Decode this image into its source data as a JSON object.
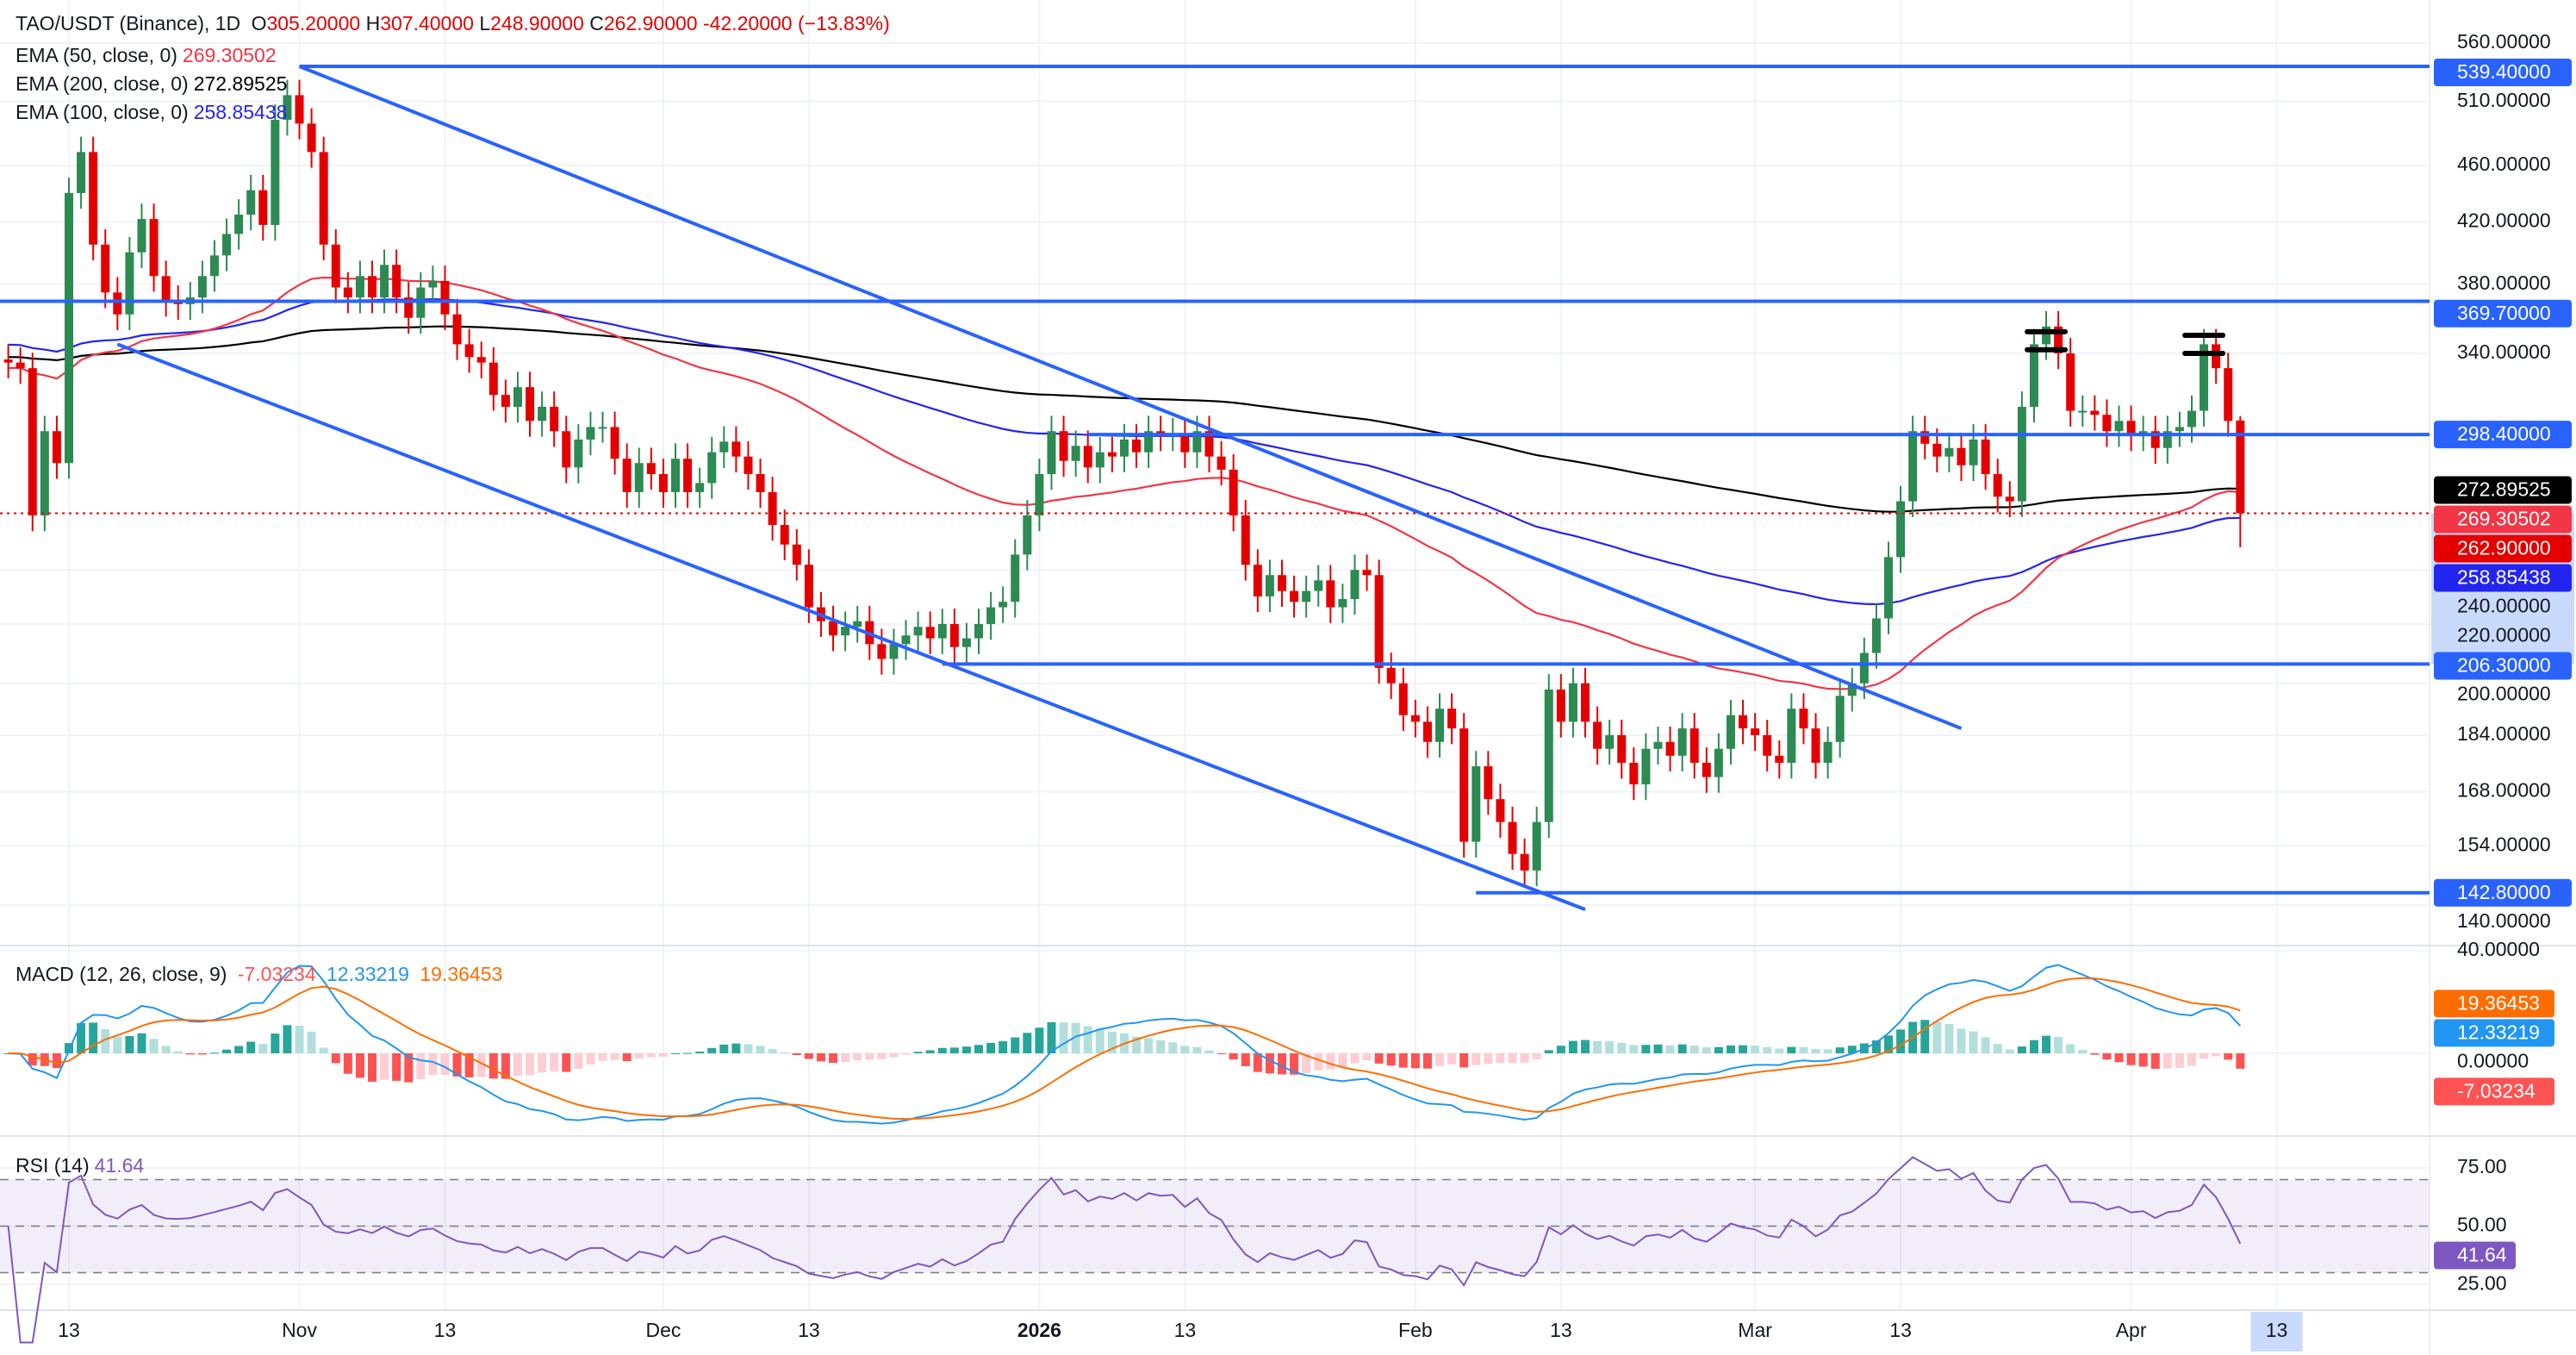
{
  "header": {
    "symbol": "TAO/USDT (Binance), 1D",
    "o_label": "O",
    "o": "305.20000",
    "h_label": "H",
    "h": "307.40000",
    "l_label": "L",
    "l": "248.90000",
    "c_label": "C",
    "c": "262.90000",
    "change": "-42.20000 (−13.83%)"
  },
  "indicators": {
    "ema50": {
      "label": "EMA (50, close, 0)",
      "value": "269.30502",
      "color": "#f23645"
    },
    "ema200": {
      "label": "EMA (200, close, 0)",
      "value": "272.89525",
      "color": "#000000"
    },
    "ema100": {
      "label": "EMA (100, close, 0)",
      "value": "258.85438",
      "color": "#2424f0"
    },
    "macd": {
      "label": "MACD (12, 26, close, 9)",
      "hist": "-7.03234",
      "macd": "12.33219",
      "signal": "19.36453"
    },
    "rsi": {
      "label": "RSI (14)",
      "value": "41.64"
    }
  },
  "chart_data": {
    "type": "candlestick",
    "scale": "log",
    "ylim": [
      140,
      560
    ],
    "grid": true,
    "colors": {
      "up": "#2c8a53",
      "down": "#e50000",
      "trendline": "#2962ff",
      "macd": "#2196f3",
      "signal": "#ff6d00",
      "rsi": "#7e57c2"
    },
    "last_candle": {
      "date": "2026-04-10",
      "open": 305.2,
      "high": 307.4,
      "low": 248.9,
      "close": 262.9
    },
    "candles": [
      {
        "month": "2025-10",
        "days_from": 8,
        "close": [
          335,
          332,
          262,
          300,
          285,
          440,
          470,
          405,
          375,
          362,
          400,
          422,
          385,
          370,
          368,
          372,
          385,
          398,
          412,
          425,
          442,
          418,
          495,
          515
        ]
      },
      {
        "month": "2025-11",
        "days_from": 1,
        "close": [
          492,
          470,
          405,
          378,
          372,
          385,
          372,
          392,
          372,
          360,
          378,
          382,
          362,
          345,
          338,
          335,
          318,
          312,
          322,
          305,
          312,
          300,
          283,
          296,
          302,
          302,
          287,
          272,
          285,
          280
        ]
      },
      {
        "month": "2025-12",
        "days_from": 1,
        "close": [
          272,
          287,
          272,
          276,
          290,
          295,
          288,
          280,
          272,
          258,
          250,
          242,
          226,
          221,
          216,
          219,
          221,
          213,
          208,
          213,
          216,
          219,
          215,
          220,
          212,
          215,
          220,
          226,
          228,
          246,
          262
        ]
      },
      {
        "month": "2026-01",
        "days_from": 1,
        "close": [
          280,
          300,
          286,
          293,
          283,
          290,
          288,
          296,
          290,
          300,
          298,
          299,
          290,
          300,
          288,
          282,
          262,
          242,
          230,
          238,
          232,
          228,
          232,
          236,
          226,
          229,
          240,
          238,
          205,
          200,
          190
        ]
      },
      {
        "month": "2026-02",
        "days_from": 1,
        "close": [
          188,
          182,
          192,
          186,
          155,
          175,
          166,
          160,
          152,
          148,
          160,
          198,
          188,
          200,
          188,
          180,
          184,
          176,
          170,
          180,
          182,
          178,
          186,
          176,
          172,
          180,
          190,
          186
        ]
      },
      {
        "month": "2026-03",
        "days_from": 1,
        "close": [
          184,
          178,
          176,
          192,
          186,
          176,
          182,
          196,
          200,
          210,
          222,
          245,
          268,
          300,
          294,
          288,
          292,
          284,
          296,
          280,
          270,
          268,
          312,
          345,
          355,
          340,
          310,
          310,
          308,
          300,
          305
        ]
      },
      {
        "month": "2026-04",
        "days_from": 1,
        "close": [
          298,
          300,
          292,
          300,
          302,
          310,
          345,
          332,
          305,
          262.9
        ]
      }
    ],
    "price_ticks": [
      "560.00000",
      "510.00000",
      "460.00000",
      "420.00000",
      "380.00000",
      "340.00000",
      "240.00000",
      "220.00000",
      "200.00000",
      "184.00000",
      "168.00000",
      "154.00000",
      "140.00000"
    ],
    "price_labels": [
      {
        "value": "539.40000",
        "color": "#2962ff"
      },
      {
        "value": "369.70000",
        "color": "#2962ff"
      },
      {
        "value": "298.40000",
        "color": "#2962ff"
      },
      {
        "value": "272.89525",
        "color": "#000000"
      },
      {
        "value": "269.30502",
        "color": "#f23645"
      },
      {
        "value": "262.90000",
        "color": "#e50000"
      },
      {
        "value": "258.85438",
        "color": "#2424f0"
      },
      {
        "value": "206.30000",
        "color": "#2962ff"
      },
      {
        "value": "142.80000",
        "color": "#2962ff"
      }
    ],
    "highlight_range": [
      206.3,
      262.9
    ],
    "horizontal_lines": [
      {
        "price": 539.4,
        "from": "2025-11-01"
      },
      {
        "price": 369.7,
        "from": "2025-10-07"
      },
      {
        "price": 298.4,
        "from": "2026-01-05"
      },
      {
        "price": 206.3,
        "from": "2025-12-24"
      },
      {
        "price": 142.8,
        "from": "2026-02-06"
      }
    ],
    "trend_lines": [
      {
        "from": {
          "date": "2025-11-01",
          "price": 539.4
        },
        "to": {
          "date": "2026-03-18",
          "price": 186
        }
      },
      {
        "from": {
          "date": "2025-10-17",
          "price": 345
        },
        "to": {
          "date": "2026-02-15",
          "price": 139
        }
      }
    ],
    "double_top_marks": [
      {
        "date": "2026-03-25",
        "prices": [
          352,
          342
        ]
      },
      {
        "date": "2026-04-07",
        "prices": [
          350,
          340
        ]
      }
    ],
    "macd_pane": {
      "ticks": [
        "40.00000",
        "0.00000"
      ],
      "labels": [
        {
          "value": "19.36453",
          "color": "#ff6d00"
        },
        {
          "value": "12.33219",
          "color": "#2196f3"
        },
        {
          "value": "-7.03234",
          "color": "#ff5252"
        }
      ]
    },
    "rsi_pane": {
      "ticks": [
        "75.00",
        "50.00",
        "25.00"
      ],
      "levels": [
        70,
        50,
        30
      ],
      "label": {
        "value": "41.64",
        "color": "#7e57c2"
      }
    },
    "time_axis": [
      {
        "label": "13",
        "date": "2025-10-13"
      },
      {
        "label": "Nov",
        "date": "2025-11-01"
      },
      {
        "label": "13",
        "date": "2025-11-13"
      },
      {
        "label": "Dec",
        "date": "2025-12-01"
      },
      {
        "label": "13",
        "date": "2025-12-13"
      },
      {
        "label": "2026",
        "date": "2026-01-01",
        "bold": true
      },
      {
        "label": "13",
        "date": "2026-01-13"
      },
      {
        "label": "Feb",
        "date": "2026-02-01"
      },
      {
        "label": "13",
        "date": "2026-02-13"
      },
      {
        "label": "Mar",
        "date": "2026-03-01"
      },
      {
        "label": "13",
        "date": "2026-03-13"
      },
      {
        "label": "Apr",
        "date": "2026-04-01"
      },
      {
        "label": "13",
        "date": "2026-04-13",
        "highlight": true
      }
    ]
  }
}
